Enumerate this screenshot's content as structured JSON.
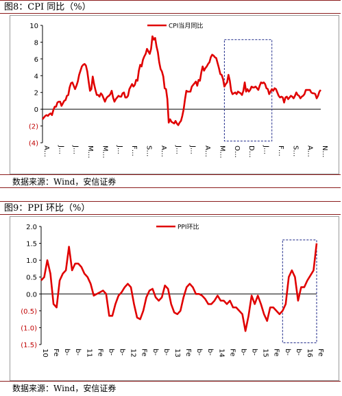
{
  "charts": [
    {
      "title": "图8：CPI 同比（%）",
      "source": "数据来源：Wind，安信证券"
    },
    {
      "title": "图9：PPI 环比（%）",
      "source": "数据来源：Wind，安信证券"
    }
  ],
  "watermark": "",
  "chart_data": [
    {
      "type": "line",
      "title": "CPI 同比（%）",
      "xlabel": "",
      "ylabel": "",
      "ylim": [
        -4,
        10
      ],
      "yticks": [
        10,
        8,
        6,
        4,
        2,
        0,
        -2,
        -4
      ],
      "ytick_labels": [
        "10",
        "8",
        "6",
        "4",
        "2",
        "0",
        "(2)",
        "(4)"
      ],
      "xtick_labels": [
        "A…",
        "J…",
        "J…",
        "M…",
        "M…",
        "J…",
        "F…",
        "S…",
        "A…",
        "J…",
        "J…",
        "A…",
        "M…",
        "O…",
        "D…",
        "J…",
        "F…",
        "S…",
        "A…",
        "N…"
      ],
      "legend": "top-center",
      "colors": {
        "line": "#e00000",
        "negative_tick": "#c00000",
        "highlight_box": "#1f2a8a"
      },
      "highlight_box": {
        "from_index": 134,
        "to_index": 169,
        "y_range": [
          -3.8,
          8.3
        ]
      },
      "series": [
        {
          "name": "CPI当月同比",
          "values": [
            -1.2,
            -1.0,
            -0.8,
            -0.7,
            -0.8,
            -0.6,
            -0.5,
            -0.7,
            -0.1,
            0.3,
            0.3,
            0.8,
            0.9,
            0.9,
            0.4,
            0.7,
            1.0,
            1.1,
            1.6,
            1.7,
            2.6,
            3.1,
            3.2,
            2.8,
            2.4,
            2.8,
            3.3,
            4.1,
            4.6,
            5.1,
            5.3,
            5.4,
            5.2,
            4.5,
            3.3,
            2.2,
            2.4,
            3.9,
            3.0,
            2.3,
            1.7,
            1.7,
            1.5,
            1.9,
            1.7,
            1.3,
            0.9,
            1.3,
            1.5,
            1.6,
            1.8,
            2.2,
            1.4,
            0.9,
            1.2,
            1.4,
            1.6,
            1.5,
            1.5,
            1.9,
            2.0,
            1.4,
            1.4,
            1.6,
            2.4,
            2.7,
            3.0,
            2.7,
            2.9,
            3.5,
            3.4,
            4.6,
            5.3,
            5.1,
            5.9,
            6.3,
            6.6,
            7.2,
            6.9,
            6.6,
            7.2,
            8.7,
            8.3,
            8.5,
            7.5,
            6.8,
            5.6,
            4.8,
            4.5,
            3.9,
            2.5,
            2.4,
            1.2,
            -1.6,
            -1.2,
            -1.5,
            -1.6,
            -1.7,
            -1.4,
            -1.7,
            -1.9,
            -1.6,
            -1.4,
            -0.8,
            0.0,
            1.2,
            2.2,
            2.1,
            2.1,
            2.1,
            2.7,
            2.9,
            3.1,
            3.3,
            2.8,
            3.5,
            3.4,
            4.4,
            5.1,
            4.6,
            4.9,
            5.1,
            5.4,
            5.6,
            6.2,
            6.5,
            6.4,
            6.2,
            6.1,
            5.5,
            4.9,
            4.2,
            4.1,
            3.6,
            2.7,
            3.0,
            3.2,
            4.1,
            3.4,
            2.2,
            1.8,
            1.9,
            2.0,
            1.8,
            2.1,
            2.0,
            1.9,
            1.7,
            2.2,
            3.2,
            2.1,
            2.4,
            2.1,
            2.3,
            2.7,
            2.6,
            2.6,
            2.7,
            2.5,
            2.3,
            2.8,
            3.2,
            3.1,
            3.2,
            3.0,
            2.5,
            2.4,
            1.8,
            2.1,
            2.4,
            2.2,
            2.5,
            2.4,
            2.0,
            1.6,
            1.4,
            1.5,
            1.4,
            0.8,
            1.4,
            1.5,
            1.2,
            1.4,
            1.6,
            1.5,
            1.3,
            1.6,
            2.0,
            1.7,
            1.6,
            1.3,
            1.5,
            1.6,
            1.8,
            2.3,
            2.3,
            2.3,
            2.3,
            2.0,
            1.9,
            1.9,
            1.8,
            1.3,
            1.6,
            2.1,
            2.3
          ]
        }
      ]
    },
    {
      "type": "line",
      "title": "PPI 环比（%）",
      "xlabel": "",
      "ylabel": "",
      "ylim": [
        -1.5,
        2.0
      ],
      "yticks": [
        2.0,
        1.5,
        1.0,
        0.5,
        0.0,
        -0.5,
        -1.0,
        -1.5
      ],
      "ytick_labels": [
        "2.0",
        "1.5",
        "1.0",
        "0.5",
        "0.0",
        "(0.5)",
        "(1.0)",
        "(1.5)"
      ],
      "xtick_labels": [
        "10",
        "Fe",
        "b-",
        "b-",
        "11",
        "Fe",
        "b-",
        "b-",
        "12",
        "Fe",
        "b-",
        "b-",
        "13",
        "Fe",
        "b-",
        "b-",
        "14",
        "Fe",
        "b-",
        "b-",
        "15",
        "Fe",
        "b-",
        "b-",
        "16",
        "Fe"
      ],
      "legend": "top-center",
      "colors": {
        "line": "#e00000",
        "negative_tick": "#c00000",
        "highlight_box": "#1f2a8a"
      },
      "highlight_box": {
        "from_index": 78,
        "to_index": 89,
        "y_range": [
          -1.45,
          1.6
        ]
      },
      "series": [
        {
          "name": "PPI环比",
          "values": [
            0.4,
            0.5,
            1.0,
            0.6,
            -0.3,
            -0.4,
            0.4,
            0.6,
            0.7,
            1.4,
            0.7,
            0.9,
            0.9,
            0.8,
            0.6,
            0.5,
            0.3,
            -0.05,
            0.0,
            0.05,
            0.1,
            0.0,
            -0.65,
            -0.65,
            -0.3,
            -0.05,
            0.05,
            0.2,
            0.3,
            0.2,
            -0.3,
            -0.7,
            -0.75,
            -0.5,
            -0.1,
            0.1,
            0.15,
            -0.1,
            -0.2,
            -0.1,
            0.25,
            0.15,
            -0.3,
            -0.55,
            -0.6,
            -0.5,
            -0.1,
            0.2,
            0.3,
            0.2,
            0.0,
            0.0,
            -0.05,
            -0.15,
            -0.3,
            -0.3,
            -0.2,
            -0.05,
            -0.2,
            -0.2,
            -0.3,
            -0.2,
            -0.4,
            -0.4,
            -0.5,
            -0.6,
            -1.1,
            -0.65,
            -0.05,
            -0.3,
            -0.05,
            -0.3,
            -0.6,
            -0.8,
            -0.4,
            -0.4,
            -0.5,
            -0.6,
            -0.5,
            -0.3,
            0.5,
            0.7,
            0.5,
            -0.2,
            0.2,
            0.2,
            0.4,
            0.55,
            0.7,
            1.5
          ]
        }
      ]
    }
  ]
}
